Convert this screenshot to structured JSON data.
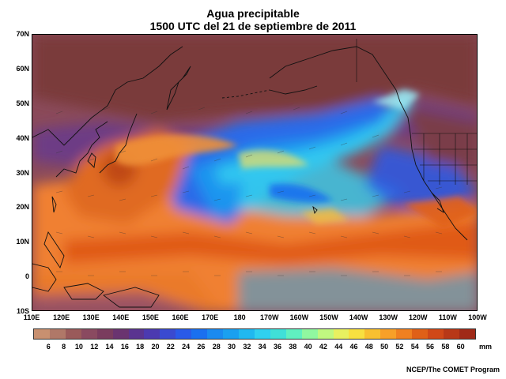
{
  "title": "Agua precipitable",
  "subtitle": "1500 UTC del 21 de septiembre de 2011",
  "map": {
    "lat_labels": [
      "70N",
      "60N",
      "50N",
      "40N",
      "30N",
      "20N",
      "10N",
      "0",
      "10S"
    ],
    "lon_labels": [
      "110E",
      "120E",
      "130E",
      "140E",
      "150E",
      "160E",
      "170E",
      "180",
      "170W",
      "160W",
      "150W",
      "140W",
      "130W",
      "120W",
      "110W",
      "100W"
    ],
    "extent": {
      "lon_min": 110,
      "lon_max": 260,
      "lat_min": -10,
      "lat_max": 70
    }
  },
  "colorbar": {
    "ticks": [
      "6",
      "8",
      "10",
      "12",
      "14",
      "16",
      "18",
      "20",
      "22",
      "24",
      "26",
      "28",
      "30",
      "32",
      "34",
      "36",
      "38",
      "40",
      "42",
      "44",
      "46",
      "48",
      "50",
      "52",
      "54",
      "56",
      "58",
      "60"
    ],
    "units": "mm",
    "colors": [
      "#c89070",
      "#b07868",
      "#9a5a5a",
      "#8a4a60",
      "#7a3c5e",
      "#6a3470",
      "#5a3490",
      "#4c3ab0",
      "#3a4ad0",
      "#2a5ae8",
      "#1a70f0",
      "#1a8af0",
      "#1aa0f0",
      "#20b8f0",
      "#30d0f0",
      "#40e0d8",
      "#60f0c0",
      "#90f8a0",
      "#c0f880",
      "#e8f060",
      "#f8e040",
      "#f8c030",
      "#f8a028",
      "#f08020",
      "#e06018",
      "#d04818",
      "#b83818",
      "#a02a18"
    ]
  },
  "credit": "NCEP/The COMET Program"
}
